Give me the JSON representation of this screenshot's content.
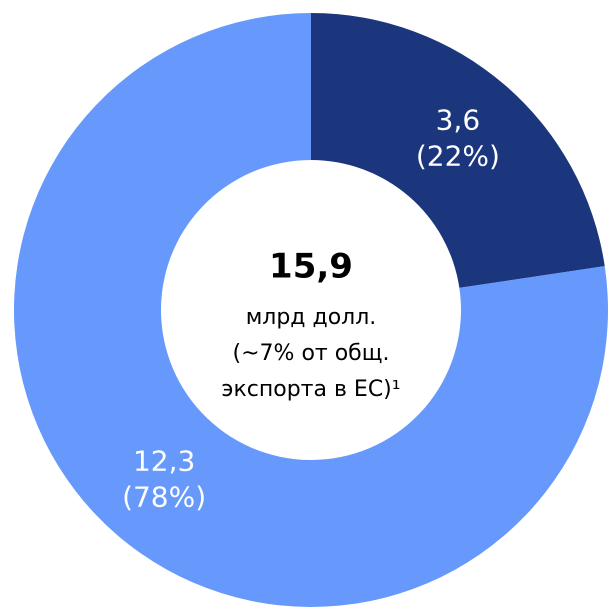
{
  "chart_data": {
    "type": "donut",
    "values": [
      3.6,
      12.3
    ],
    "value_labels": [
      "3,6",
      "12,3"
    ],
    "percents": [
      22,
      78
    ],
    "percent_labels": [
      "(22%)",
      "(78%)"
    ],
    "colors": [
      "#1b367c",
      "#6699fb"
    ],
    "center_value": "15,9",
    "center_lines": [
      "млрд долл.",
      "(~7% от общ.",
      "экспорта в ЕС)¹"
    ]
  }
}
